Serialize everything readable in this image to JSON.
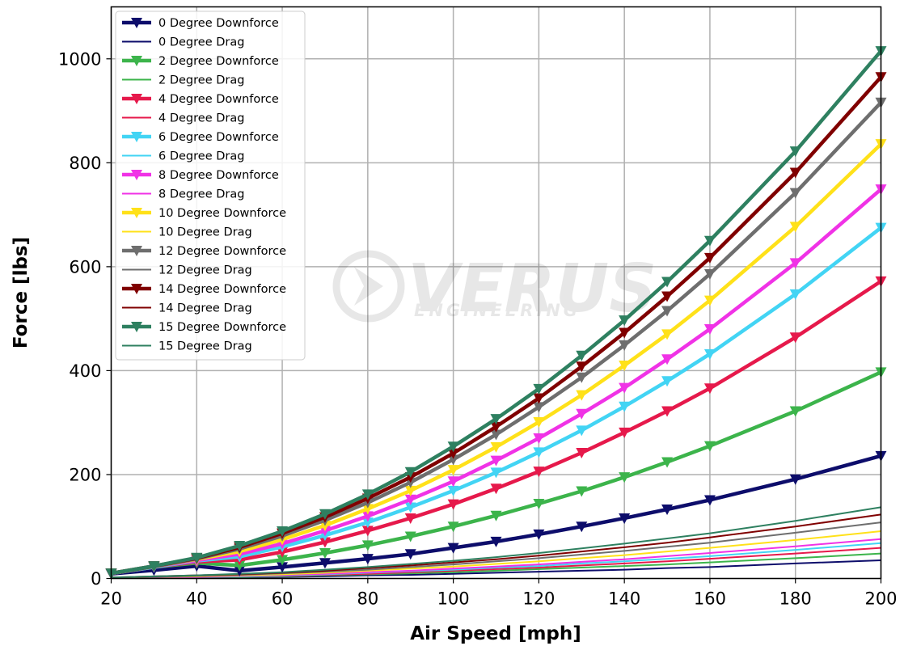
{
  "chart_data": {
    "type": "line",
    "xlabel": "Air Speed [mph]",
    "ylabel": "Force [lbs]",
    "xlim": [
      20,
      200
    ],
    "ylim": [
      0,
      1100
    ],
    "xticks": [
      20,
      40,
      60,
      80,
      100,
      120,
      140,
      160,
      180,
      200
    ],
    "yticks": [
      0,
      200,
      400,
      600,
      800,
      1000
    ],
    "grid": true,
    "legend_position": "upper-left",
    "watermark": {
      "brand": "VERUS",
      "sub": "ENGINEERING"
    },
    "x": [
      20,
      30,
      40,
      50,
      60,
      70,
      80,
      90,
      100,
      110,
      120,
      130,
      140,
      150,
      160,
      180,
      200
    ],
    "series": [
      {
        "name": "0 Degree Downforce",
        "kind": "downforce",
        "color": "#0d0d6b",
        "values": [
          9,
          16,
          24,
          15,
          22,
          30,
          38,
          47,
          59,
          71,
          85,
          100,
          116,
          133,
          151,
          191,
          236
        ]
      },
      {
        "name": "0 Degree Drag",
        "kind": "drag",
        "color": "#0d0d6b",
        "values": [
          1,
          1,
          2,
          2,
          3,
          4,
          6,
          7,
          9,
          11,
          13,
          15,
          17,
          20,
          22,
          29,
          35
        ]
      },
      {
        "name": "2 Degree Downforce",
        "kind": "downforce",
        "color": "#3cb44b",
        "values": [
          10,
          22,
          30,
          25,
          36,
          49,
          64,
          81,
          100,
          121,
          144,
          168,
          195,
          224,
          255,
          322,
          397
        ]
      },
      {
        "name": "2 Degree Drag",
        "kind": "drag",
        "color": "#3cb44b",
        "values": [
          1,
          2,
          3,
          3,
          4,
          6,
          8,
          10,
          12,
          15,
          18,
          21,
          24,
          27,
          31,
          39,
          48
        ]
      },
      {
        "name": "4 Degree Downforce",
        "kind": "downforce",
        "color": "#e6194b",
        "values": [
          10,
          22,
          32,
          36,
          51,
          70,
          92,
          116,
          143,
          173,
          206,
          242,
          281,
          322,
          366,
          464,
          572
        ]
      },
      {
        "name": "4 Degree Drag",
        "kind": "drag",
        "color": "#e6194b",
        "values": [
          1,
          2,
          3,
          4,
          5,
          7,
          9,
          12,
          15,
          18,
          21,
          25,
          29,
          33,
          38,
          48,
          59
        ]
      },
      {
        "name": "6 Degree Downforce",
        "kind": "downforce",
        "color": "#42d4f4",
        "values": [
          10,
          22,
          34,
          42,
          61,
          83,
          108,
          137,
          169,
          204,
          243,
          285,
          331,
          380,
          432,
          547,
          675
        ]
      },
      {
        "name": "6 Degree Drag",
        "kind": "drag",
        "color": "#42d4f4",
        "values": [
          1,
          2,
          3,
          4,
          6,
          8,
          11,
          14,
          17,
          21,
          24,
          29,
          33,
          38,
          43,
          55,
          68
        ]
      },
      {
        "name": "8 Degree Downforce",
        "kind": "downforce",
        "color": "#f032e6",
        "values": [
          10,
          23,
          35,
          47,
          67,
          92,
          120,
          152,
          187,
          227,
          270,
          317,
          367,
          422,
          480,
          607,
          749
        ]
      },
      {
        "name": "8 Degree Drag",
        "kind": "drag",
        "color": "#f032e6",
        "values": [
          1,
          2,
          3,
          5,
          7,
          9,
          12,
          15,
          19,
          23,
          27,
          32,
          37,
          43,
          49,
          62,
          76
        ]
      },
      {
        "name": "10 Degree Downforce",
        "kind": "downforce",
        "color": "#ffe119",
        "values": [
          10,
          23,
          37,
          52,
          75,
          102,
          134,
          169,
          209,
          253,
          301,
          353,
          410,
          470,
          535,
          677,
          836
        ]
      },
      {
        "name": "10 Degree Drag",
        "kind": "drag",
        "color": "#ffe119",
        "values": [
          2,
          3,
          4,
          6,
          8,
          11,
          15,
          19,
          23,
          28,
          33,
          39,
          45,
          52,
          59,
          74,
          91
        ]
      },
      {
        "name": "12 Degree Downforce",
        "kind": "downforce",
        "color": "#6e6e6e",
        "values": [
          10,
          23,
          38,
          57,
          82,
          112,
          146,
          185,
          229,
          277,
          330,
          387,
          449,
          515,
          586,
          742,
          916
        ]
      },
      {
        "name": "12 Degree Drag",
        "kind": "drag",
        "color": "#6e6e6e",
        "values": [
          2,
          3,
          5,
          7,
          10,
          13,
          17,
          22,
          27,
          33,
          39,
          46,
          53,
          61,
          69,
          88,
          108
        ]
      },
      {
        "name": "14 Degree Downforce",
        "kind": "downforce",
        "color": "#800000",
        "values": [
          10,
          24,
          39,
          60,
          87,
          118,
          154,
          195,
          241,
          292,
          347,
          408,
          473,
          543,
          617,
          781,
          965
        ]
      },
      {
        "name": "14 Degree Drag",
        "kind": "drag",
        "color": "#800000",
        "values": [
          2,
          4,
          6,
          8,
          11,
          15,
          20,
          25,
          31,
          37,
          44,
          52,
          60,
          69,
          79,
          100,
          123
        ]
      },
      {
        "name": "15 Degree Downforce",
        "kind": "downforce",
        "color": "#2e8060",
        "values": [
          10,
          24,
          40,
          63,
          91,
          124,
          162,
          205,
          254,
          307,
          365,
          429,
          497,
          571,
          650,
          822,
          1015
        ]
      },
      {
        "name": "15 Degree Drag",
        "kind": "drag",
        "color": "#2e8060",
        "values": [
          2,
          4,
          6,
          9,
          12,
          17,
          22,
          28,
          34,
          41,
          49,
          58,
          67,
          77,
          87,
          111,
          137
        ]
      }
    ]
  }
}
